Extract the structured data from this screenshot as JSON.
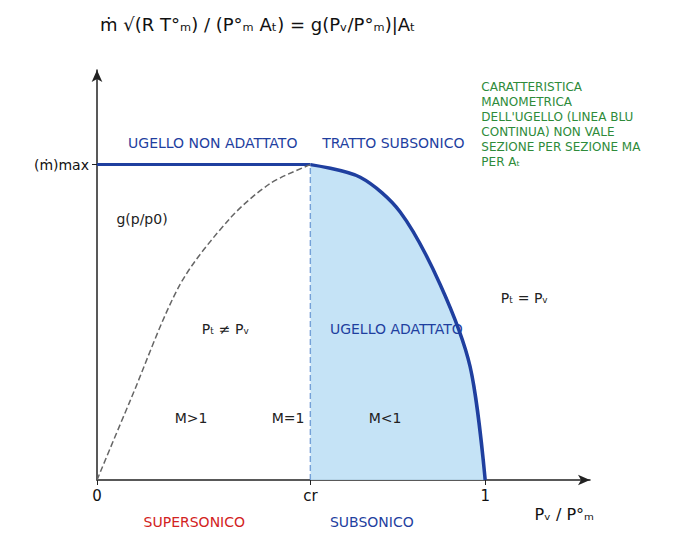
{
  "chart_data": {
    "type": "line",
    "title": "ṁ √(R T°ₘ) / (P°ₘ Aₜ) = g(Pᵥ/P°ₘ)|Aₜ",
    "x_label": "Pᵥ / P°ₘ",
    "xlim": [
      0,
      1.27
    ],
    "ylim": [
      0,
      1.3
    ],
    "xticks": [
      0,
      {
        "value": 0.55,
        "label": "cr"
      },
      1
    ],
    "yticks": [
      {
        "value": 1,
        "label": "(ṁ)max"
      }
    ],
    "grid": false,
    "series": [
      {
        "type": "line",
        "color": "#1f3f9f",
        "line_style": "solid",
        "x": [
          0,
          0.55
        ],
        "values": [
          1,
          1
        ]
      },
      {
        "type": "area",
        "color": "#1f3f9f",
        "line_style": "solid",
        "x": [
          0.55,
          0.678,
          0.781,
          0.884,
          0.961,
          1
        ],
        "values": [
          1,
          0.96,
          0.85,
          0.62,
          0.36,
          0
        ]
      },
      {
        "type": "line",
        "color": "#666666",
        "line_style": "dashed",
        "x": [
          0,
          0.085,
          0.214,
          0.343,
          0.446,
          0.55
        ],
        "values": [
          0,
          0.25,
          0.62,
          0.83,
          0.94,
          1
        ]
      },
      {
        "type": "line",
        "color": "#3a6fc0",
        "line_style": "dashed",
        "x": [
          0.55,
          0.55
        ],
        "values": [
          0,
          1
        ]
      }
    ],
    "annotations": [
      {
        "text": "UGELLO NON ADATTATO",
        "x": 0.08,
        "y": 1.09,
        "color": "#1f3f9f"
      },
      {
        "text": "TRATTO SUBSONICO",
        "x": 0.58,
        "y": 1.09,
        "color": "#1f3f9f"
      },
      {
        "text": "UGELLO ADATTATO",
        "x": 0.6,
        "y": 0.5,
        "color": "#1f3f9f"
      },
      {
        "text": "CARATTERISTICA MANOMETRICA DELL'UGELLO (LINEA BLU CONTINUA) NON VALE SEZIONE PER SEZIONE MA PER Aₜ",
        "x": 0.99,
        "y": 1.27,
        "color": "#2e8b3a"
      },
      {
        "text": "Pₜ = Pᵥ",
        "x": 1.04,
        "y": 0.6,
        "color": "#222222"
      },
      {
        "text": "Pₜ ≠ Pᵥ",
        "x": 0.27,
        "y": 0.5,
        "color": "#222222"
      },
      {
        "text": "g(p/p0)",
        "x": 0.05,
        "y": 0.85,
        "color": "#222222"
      },
      {
        "text": "M>1",
        "x": 0.2,
        "y": 0.22,
        "color": "#222222"
      },
      {
        "text": "M=1",
        "x": 0.45,
        "y": 0.22,
        "color": "#222222"
      },
      {
        "text": "M<1",
        "x": 0.7,
        "y": 0.22,
        "color": "#222222"
      },
      {
        "text": "SUPERSONICO",
        "x": 0.12,
        "y": -0.11,
        "color": "#d22222"
      },
      {
        "text": "SUBSONICO",
        "x": 0.6,
        "y": -0.11,
        "color": "#1f3f9f"
      }
    ]
  }
}
